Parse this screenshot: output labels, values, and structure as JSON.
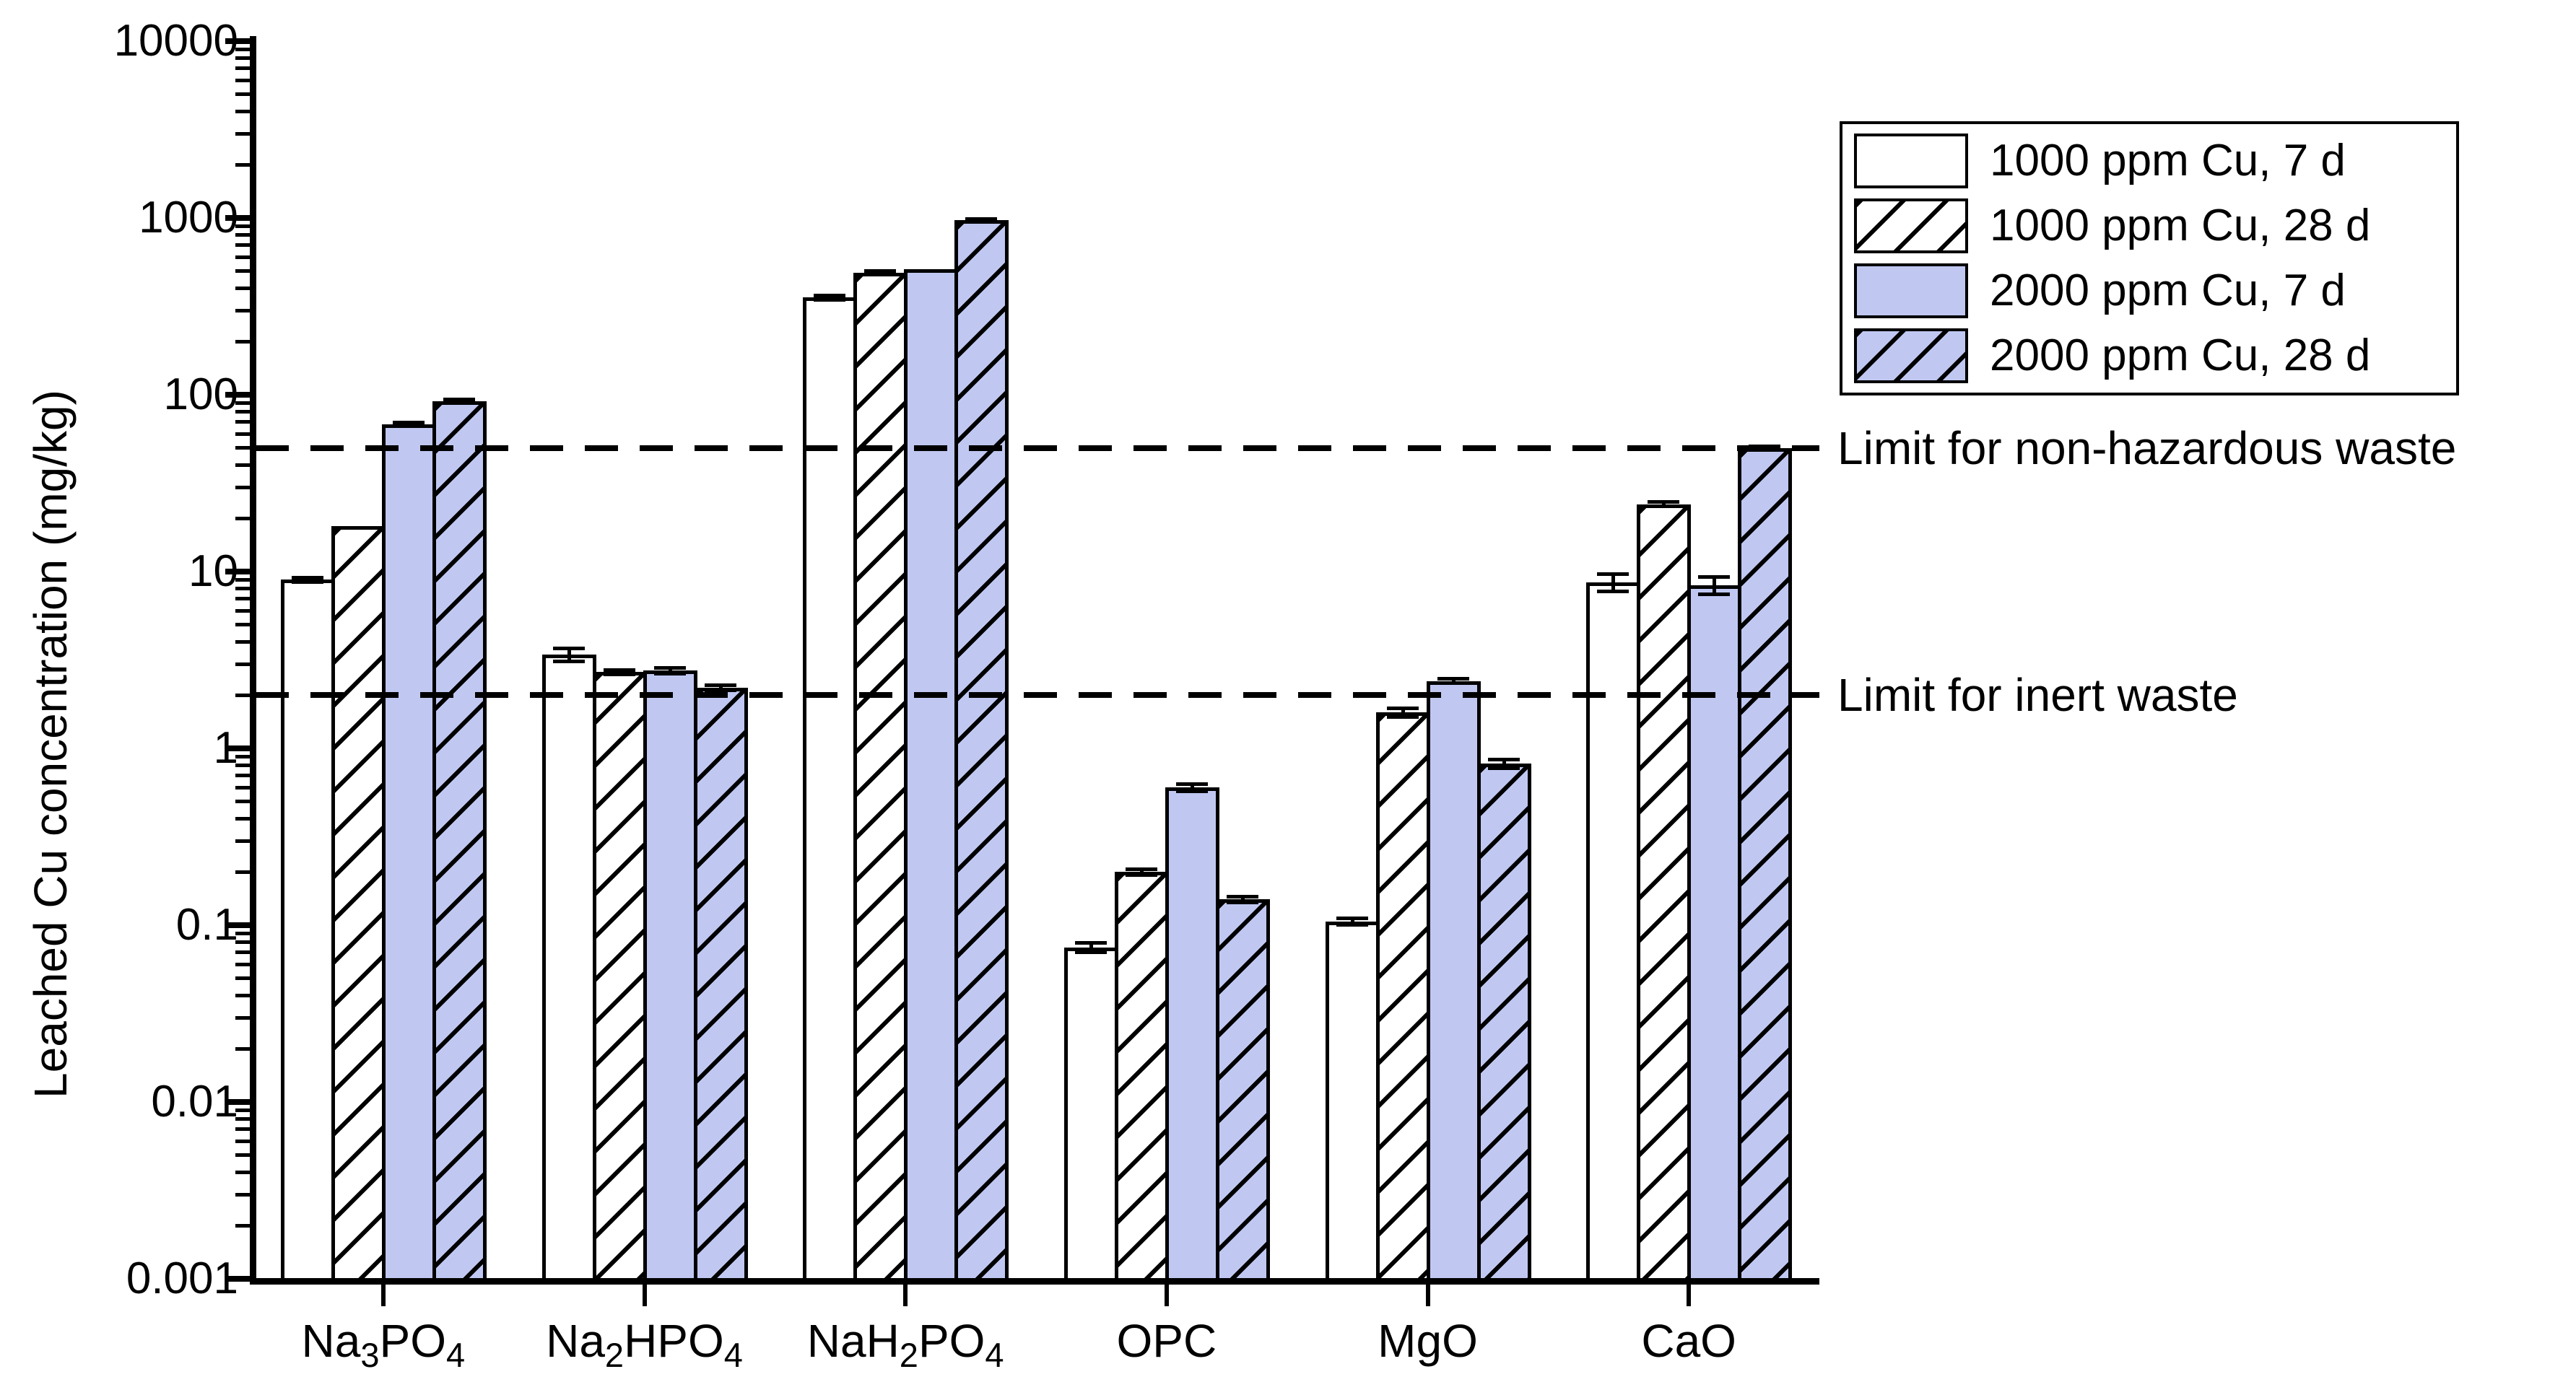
{
  "colors": {
    "background": "#ffffff",
    "bar_white": "#ffffff",
    "bar_blue": "#c0c8f2",
    "line_black": "#000000"
  },
  "chart_data": {
    "type": "bar",
    "title": "",
    "xlabel": "",
    "ylabel": "Leached Cu concentration (mg/kg)",
    "y_scale": "log",
    "ylim": [
      0.001,
      10000
    ],
    "y_tick_labels": [
      "10000",
      "1000",
      "100",
      "10",
      "1",
      "0.1",
      "0.01",
      "0.001"
    ],
    "grid": false,
    "legend_position": "top-right",
    "categories": [
      "Na3PO4",
      "Na2HPO4",
      "NaH2PO4",
      "OPC",
      "MgO",
      "CaO"
    ],
    "categories_display": [
      [
        [
          "Na",
          0
        ],
        [
          "3",
          1
        ],
        [
          "PO",
          0
        ],
        [
          "4",
          1
        ]
      ],
      [
        [
          "Na",
          0
        ],
        [
          "2",
          1
        ],
        [
          "HPO",
          0
        ],
        [
          "4",
          1
        ]
      ],
      [
        [
          "NaH",
          0
        ],
        [
          "2",
          1
        ],
        [
          "PO",
          0
        ],
        [
          "4",
          1
        ]
      ],
      [
        [
          "OPC",
          0
        ]
      ],
      [
        [
          "MgO",
          0
        ]
      ],
      [
        [
          "CaO",
          0
        ]
      ]
    ],
    "series": [
      {
        "name": "1000 ppm Cu, 7 d",
        "fill": "white",
        "hatch": false,
        "values": [
          9.0,
          3.4,
          355,
          0.075,
          0.105,
          8.7
        ],
        "errors": [
          0.3,
          0.3,
          12,
          0.005,
          0.005,
          1.0
        ]
      },
      {
        "name": "1000 ppm Cu, 28 d",
        "fill": "white",
        "hatch": true,
        "values": [
          18,
          2.7,
          490,
          0.2,
          1.6,
          24
        ],
        "errors": [
          0,
          0.08,
          12,
          0.008,
          0.1,
          0.8
        ]
      },
      {
        "name": "2000 ppm Cu, 7 d",
        "fill": "blue",
        "hatch": false,
        "values": [
          68,
          2.75,
          515,
          0.6,
          2.4,
          8.4
        ],
        "errors": [
          2,
          0.12,
          0,
          0.03,
          0.08,
          1.0
        ]
      },
      {
        "name": "2000 ppm Cu, 28 d",
        "fill": "blue",
        "hatch": true,
        "values": [
          92,
          2.2,
          975,
          0.14,
          0.82,
          50
        ],
        "errors": [
          2.5,
          0.08,
          20,
          0.006,
          0.05,
          1.5
        ]
      }
    ],
    "reference_lines": [
      {
        "label": "Limit for non-hazardous waste",
        "value": 50
      },
      {
        "label": "Limit for inert waste",
        "value": 2
      }
    ]
  }
}
